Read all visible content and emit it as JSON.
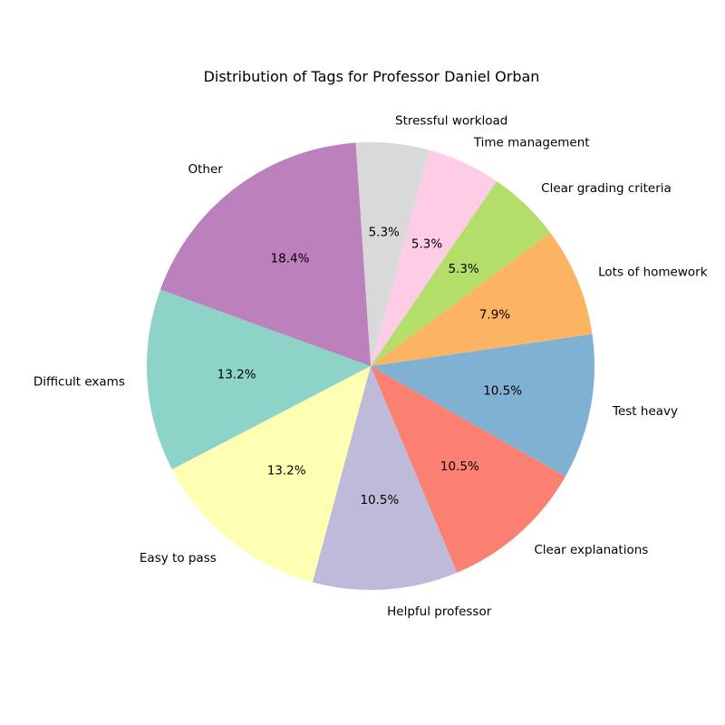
{
  "chart_data": {
    "type": "pie",
    "title": "Distribution of Tags for Professor Daniel Orban",
    "start_angle_deg": 160,
    "direction": "counterclockwise",
    "slices": [
      {
        "label": "Difficult exams",
        "value": 13.2,
        "pct_text": "13.2%",
        "color": "#8dd3c7"
      },
      {
        "label": "Easy to pass",
        "value": 13.2,
        "pct_text": "13.2%",
        "color": "#ffffb3"
      },
      {
        "label": "Helpful professor",
        "value": 10.5,
        "pct_text": "10.5%",
        "color": "#bebada"
      },
      {
        "label": "Clear explanations",
        "value": 10.5,
        "pct_text": "10.5%",
        "color": "#fb8072"
      },
      {
        "label": "Test heavy",
        "value": 10.5,
        "pct_text": "10.5%",
        "color": "#80b1d3"
      },
      {
        "label": "Lots of homework",
        "value": 7.9,
        "pct_text": "7.9%",
        "color": "#fdb462"
      },
      {
        "label": "Clear grading criteria",
        "value": 5.3,
        "pct_text": "5.3%",
        "color": "#b3de69"
      },
      {
        "label": "Time management",
        "value": 5.3,
        "pct_text": "5.3%",
        "color": "#fccde5"
      },
      {
        "label": "Stressful workload",
        "value": 5.3,
        "pct_text": "5.3%",
        "color": "#d9d9d9"
      },
      {
        "label": "Other",
        "value": 18.4,
        "pct_text": "18.4%",
        "color": "#bc80bd"
      }
    ]
  }
}
